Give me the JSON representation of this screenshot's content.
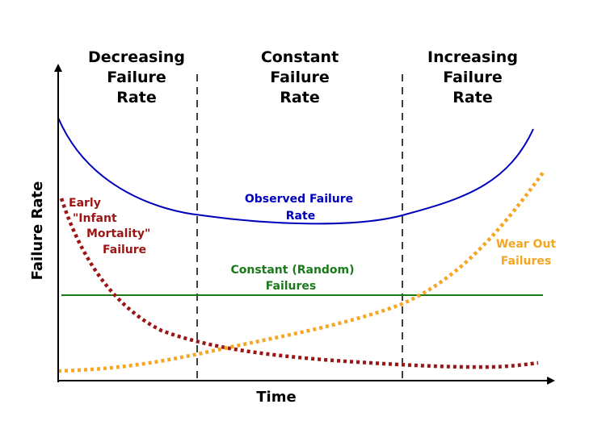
{
  "regions": {
    "left": {
      "line1": "Decreasing",
      "line2": "Failure",
      "line3": "Rate"
    },
    "middle": {
      "line1": "Constant",
      "line2": "Failure",
      "line3": "Rate"
    },
    "right": {
      "line1": "Increasing",
      "line2": "Failure",
      "line3": "Rate"
    }
  },
  "axes": {
    "x_label": "Time",
    "y_label": "Failure Rate"
  },
  "curves": {
    "observed": {
      "line1": "Observed Failure",
      "line2": "Rate",
      "color": "#0000bb",
      "style": "solid"
    },
    "constant": {
      "line1": "Constant (Random)",
      "line2": "Failures",
      "color": "#1a7a1a",
      "style": "solid"
    },
    "early": {
      "line1": "Early",
      "line2": "\"Infant",
      "line3": "Mortality\"",
      "line4": "Failure",
      "color": "#9b1515",
      "style": "dotted"
    },
    "wearout": {
      "line1": "Wear Out",
      "line2": "Failures",
      "color": "#f5a623",
      "style": "dotted"
    }
  }
}
